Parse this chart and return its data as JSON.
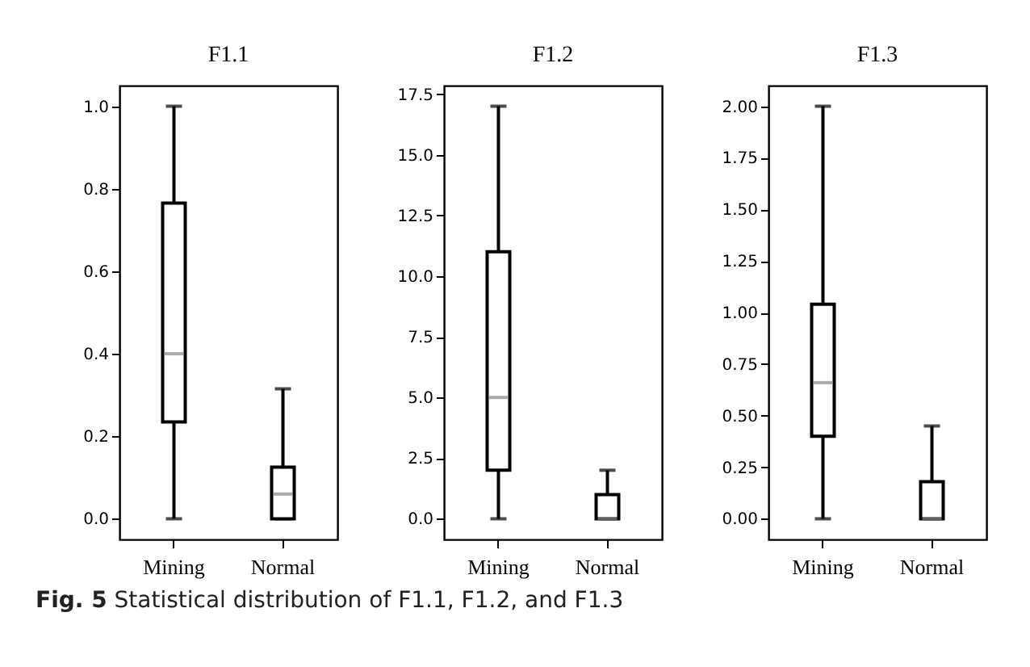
{
  "chart_data": [
    {
      "type": "box",
      "title": "F1.1",
      "categories": [
        "Mining",
        "Normal"
      ],
      "grid": false,
      "ylim": [
        -0.05,
        1.05
      ],
      "yticks": [
        {
          "value": 0,
          "label": "0.0"
        },
        {
          "value": 0.2,
          "label": "0.2"
        },
        {
          "value": 0.4,
          "label": "0.4"
        },
        {
          "value": 0.6,
          "label": "0.6"
        },
        {
          "value": 0.8,
          "label": "0.8"
        },
        {
          "value": 1,
          "label": "1.0"
        }
      ],
      "series": [
        {
          "color": "#000000",
          "boxes": [
            {
              "low": 0,
              "q1": 0.235,
              "median": 0.4,
              "q3": 0.765,
              "high": 1.0
            },
            {
              "low": 0,
              "q1": 0,
              "median": 0.06,
              "q3": 0.125,
              "high": 0.315
            }
          ]
        }
      ],
      "annotations": [
        "Fig. 5 Statistical distribution of F1.1, F1.2, and F1.3"
      ]
    },
    {
      "type": "box",
      "title": "F1.2",
      "categories": [
        "Mining",
        "Normal"
      ],
      "grid": false,
      "ylim": [
        -0.85,
        17.85
      ],
      "yticks": [
        {
          "value": 0,
          "label": "0.0"
        },
        {
          "value": 2.5,
          "label": "2.5"
        },
        {
          "value": 5,
          "label": "5.0"
        },
        {
          "value": 7.5,
          "label": "7.5"
        },
        {
          "value": 10,
          "label": "10.0"
        },
        {
          "value": 12.5,
          "label": "12.5"
        },
        {
          "value": 15,
          "label": "15.0"
        },
        {
          "value": 17.5,
          "label": "17.5"
        }
      ],
      "series": [
        {
          "color": "#000000",
          "boxes": [
            {
              "low": 0,
              "q1": 2,
              "median": 5,
              "q3": 11,
              "high": 17
            },
            {
              "low": 0,
              "q1": 0,
              "median": 0,
              "q3": 1,
              "high": 2
            }
          ]
        }
      ]
    },
    {
      "type": "box",
      "title": "F1.3",
      "categories": [
        "Mining",
        "Normal"
      ],
      "grid": false,
      "ylim": [
        -0.1,
        2.1
      ],
      "yticks": [
        {
          "value": 0,
          "label": "0.00"
        },
        {
          "value": 0.25,
          "label": "0.25"
        },
        {
          "value": 0.5,
          "label": "0.50"
        },
        {
          "value": 0.75,
          "label": "0.75"
        },
        {
          "value": 1,
          "label": "1.00"
        },
        {
          "value": 1.25,
          "label": "1.25"
        },
        {
          "value": 1.5,
          "label": "1.50"
        },
        {
          "value": 1.75,
          "label": "1.75"
        },
        {
          "value": 2,
          "label": "2.00"
        }
      ],
      "series": [
        {
          "color": "#000000",
          "boxes": [
            {
              "low": 0,
              "q1": 0.4,
              "median": 0.66,
              "q3": 1.04,
              "high": 2.0
            },
            {
              "low": 0,
              "q1": 0,
              "median": 0,
              "q3": 0.18,
              "high": 0.45
            }
          ]
        }
      ]
    }
  ]
}
